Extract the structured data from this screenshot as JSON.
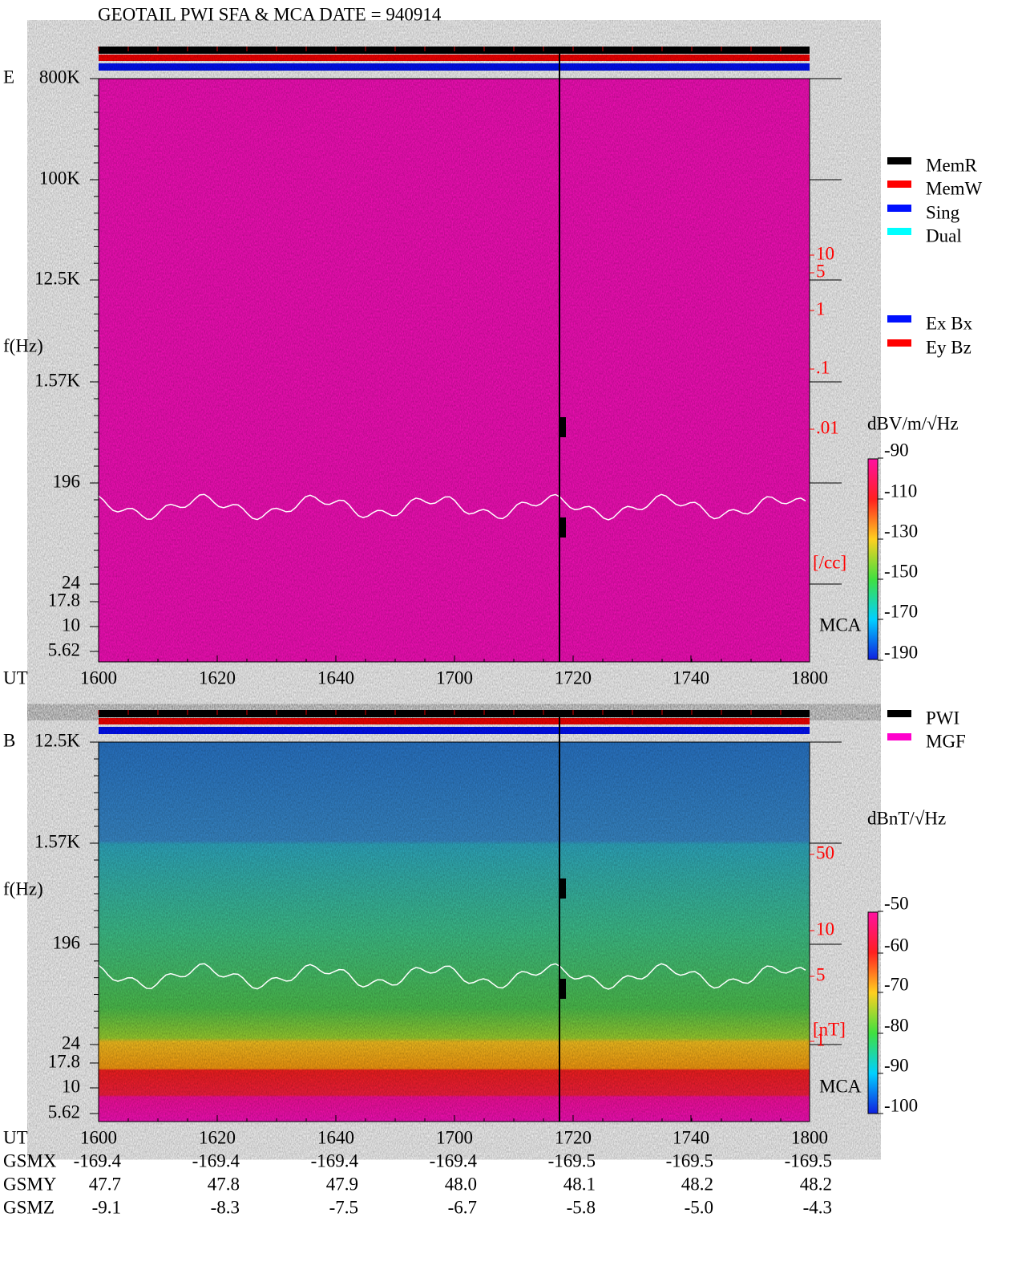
{
  "title": "GEOTAIL   PWI SFA & MCA   DATE = 940914",
  "panels": [
    {
      "label": "E",
      "y_axis_label": "f(Hz)",
      "freq_ticks": [
        "800K",
        "100K",
        "12.5K",
        "1.57K",
        "196",
        "24",
        "17.8",
        "10",
        "5.62"
      ],
      "right_ticks": [
        "10",
        "5",
        "1",
        ".1",
        ".01"
      ],
      "right_unit": "[/cc]",
      "mca": "MCA",
      "colorbar_unit": "dBV/m/√Hz",
      "colorbar_ticks": [
        "-90",
        "-110",
        "-130",
        "-150",
        "-170",
        "-190"
      ]
    },
    {
      "label": "B",
      "y_axis_label": "f(Hz)",
      "freq_ticks": [
        "12.5K",
        "1.57K",
        "196",
        "24",
        "17.8",
        "10",
        "5.62"
      ],
      "right_ticks": [
        "50",
        "10",
        "5",
        "1"
      ],
      "right_unit": "[nT]",
      "mca": "MCA",
      "colorbar_unit": "dBnT/√Hz",
      "colorbar_ticks": [
        "-50",
        "-60",
        "-70",
        "-80",
        "-90",
        "-100"
      ]
    }
  ],
  "time_axis": {
    "label": "UT",
    "ticks": [
      "1600",
      "1620",
      "1640",
      "1700",
      "1720",
      "1740",
      "1800"
    ]
  },
  "legend_mode": [
    "MemR",
    "MemW",
    "Sing",
    "Dual"
  ],
  "legend_component": [
    "Ex Bx",
    "Ey Bz"
  ],
  "legend_source": [
    "PWI",
    "MGF"
  ],
  "orbit": [
    {
      "label": "GSMX",
      "values": [
        "-169.4",
        "-169.4",
        "-169.4",
        "-169.4",
        "-169.5",
        "-169.5",
        "-169.5"
      ]
    },
    {
      "label": "GSMY",
      "values": [
        "47.7",
        "47.8",
        "47.9",
        "48.0",
        "48.1",
        "48.2",
        "48.2"
      ]
    },
    {
      "label": "GSMZ",
      "values": [
        "-9.1",
        "-8.3",
        "-7.5",
        "-6.7",
        "-5.8",
        "-5.0",
        "-4.3"
      ]
    }
  ]
}
